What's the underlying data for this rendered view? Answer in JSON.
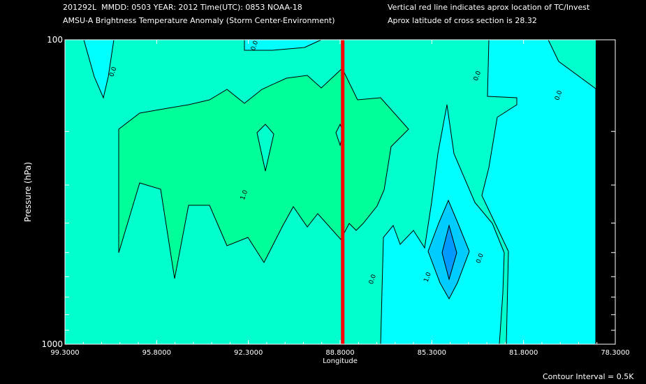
{
  "header": {
    "line1_left": "201292L  MMDD: 0503 YEAR: 2012 Time(UTC): 0853 NOAA-18",
    "line2_left": "AMSU-A Brightness Temperature Anomaly (Storm Center-Environment)",
    "line1_right": "Vertical red line indicates aprox location of TC/Invest",
    "line2_right": "Aprox latitude of cross section is 28.32"
  },
  "footer": {
    "contour_interval": "Contour Interval = 0.5K"
  },
  "colors": {
    "background": "#000000",
    "fill_zero": "#00ffcc",
    "fill_pos_half": "#00ff99",
    "fill_neg_half": "#00ffff",
    "fill_neg_one": "#00ccff",
    "fill_neg_onehalf": "#0099ff",
    "fill_edge": "#000000",
    "marker_line": "#ff0000",
    "contour_line": "#000000"
  },
  "chart_data": {
    "type": "contour",
    "xlabel": "Longitude",
    "ylabel": "Pressure (hPa)",
    "x_tick_labels": [
      "99.3000",
      "95.8000",
      "92.3000",
      "88.8000",
      "85.3000",
      "81.8000",
      "78.3000"
    ],
    "x_tick_values": [
      99.3,
      95.8,
      92.3,
      88.8,
      85.3,
      81.8,
      78.3
    ],
    "xlim": [
      99.3,
      78.3
    ],
    "y_tick_labels": [
      "100",
      "1000"
    ],
    "ylim": [
      1000,
      100
    ],
    "y_scale": "log",
    "y_minor_ticks": [
      200,
      300,
      400,
      500,
      600,
      700,
      800,
      900
    ],
    "storm_longitude": 88.7,
    "contour_interval": 0.5,
    "contour_labels": [
      {
        "text": "0.0",
        "lon": 97.4,
        "p": 128
      },
      {
        "text": "0.0",
        "lon": 92.0,
        "p": 105
      },
      {
        "text": "0.0",
        "lon": 83.5,
        "p": 132
      },
      {
        "text": "0.0",
        "lon": 80.4,
        "p": 153
      },
      {
        "text": "1.0",
        "lon": 92.4,
        "p": 325
      },
      {
        "text": "0.0",
        "lon": 87.5,
        "p": 615
      },
      {
        "text": "1.0",
        "lon": 85.4,
        "p": 605
      },
      {
        "text": "0.0",
        "lon": 83.4,
        "p": 525
      }
    ]
  }
}
